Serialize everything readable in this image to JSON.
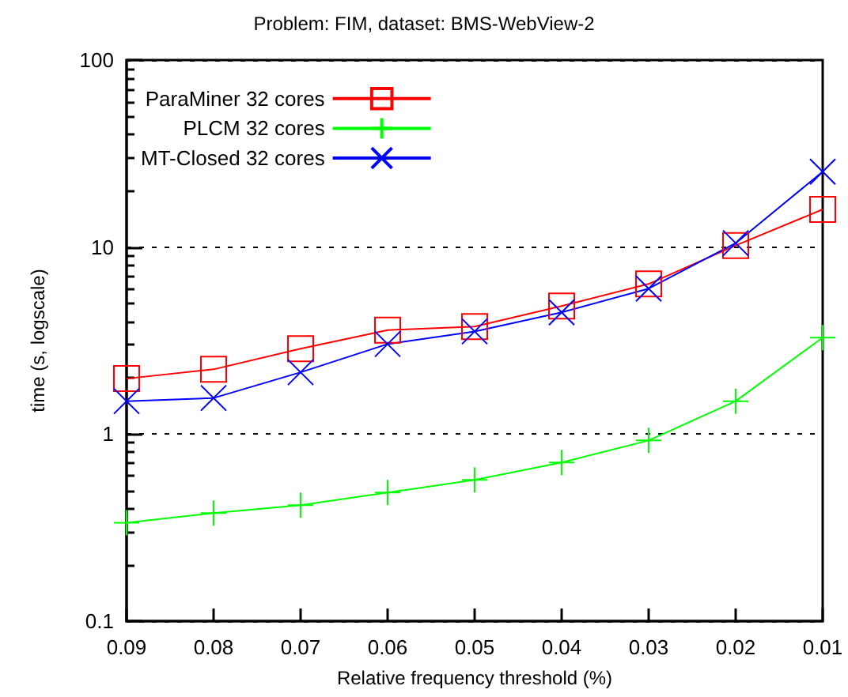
{
  "chart_data": {
    "type": "line",
    "title": "Problem: FIM, dataset: BMS-WebView-2",
    "xlabel": "Relative frequency threshold (%)",
    "ylabel": "time (s, logscale)",
    "categories": [
      "0.09",
      "0.08",
      "0.07",
      "0.06",
      "0.05",
      "0.04",
      "0.03",
      "0.02",
      "0.01"
    ],
    "series": [
      {
        "name": "ParaMiner 32 cores",
        "color": "#ff0000",
        "marker": "square",
        "values": [
          1.98,
          2.22,
          2.86,
          3.6,
          3.76,
          4.84,
          6.35,
          10.2,
          15.9
        ]
      },
      {
        "name": "PLCM 32 cores",
        "color": "#00ff00",
        "marker": "plus",
        "values": [
          0.336,
          0.378,
          0.417,
          0.487,
          0.569,
          0.705,
          0.925,
          1.5,
          3.28
        ]
      },
      {
        "name": "MT-Closed 32 cores",
        "color": "#0000ff",
        "marker": "cross",
        "values": [
          1.5,
          1.56,
          2.14,
          3.03,
          3.54,
          4.48,
          6.0,
          10.5,
          25.3
        ]
      }
    ],
    "log": true,
    "ylim": [
      0.1,
      100
    ],
    "yticks": [
      0.1,
      1,
      10,
      100
    ],
    "grid": "y",
    "legend": "top left",
    "line_style": "solid"
  }
}
